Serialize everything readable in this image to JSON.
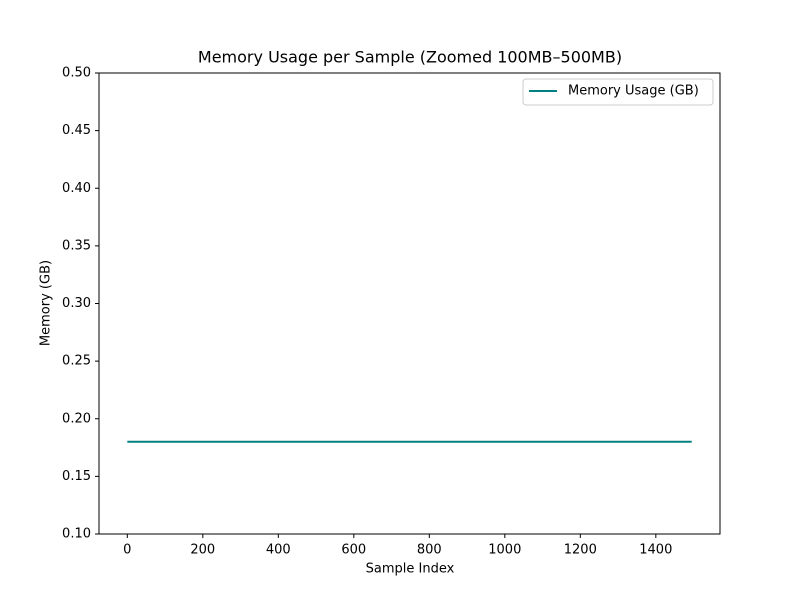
{
  "chart_data": {
    "type": "line",
    "title": "Memory Usage per Sample (Zoomed 100MB–500MB)",
    "x_label": "Sample Index",
    "y_label": "Memory (GB)",
    "x": [
      0,
      100,
      200,
      300,
      400,
      500,
      600,
      700,
      800,
      900,
      1000,
      1100,
      1200,
      1300,
      1400,
      1495
    ],
    "series": [
      {
        "name": "Memory Usage (GB)",
        "color": "#008080",
        "values": [
          0.18,
          0.18,
          0.18,
          0.18,
          0.18,
          0.18,
          0.18,
          0.18,
          0.18,
          0.18,
          0.18,
          0.18,
          0.18,
          0.18,
          0.18,
          0.18
        ]
      }
    ],
    "xlim": [
      -75,
      1570
    ],
    "ylim": [
      0.1,
      0.5
    ],
    "xticks": [
      0,
      200,
      400,
      600,
      800,
      1000,
      1200,
      1400
    ],
    "yticks": [
      {
        "value": 0.1,
        "label": "0.10"
      },
      {
        "value": 0.15,
        "label": "0.15"
      },
      {
        "value": 0.2,
        "label": "0.20"
      },
      {
        "value": 0.25,
        "label": "0.25"
      },
      {
        "value": 0.3,
        "label": "0.30"
      },
      {
        "value": 0.35,
        "label": "0.35"
      },
      {
        "value": 0.4,
        "label": "0.40"
      },
      {
        "value": 0.45,
        "label": "0.45"
      },
      {
        "value": 0.5,
        "label": "0.50"
      }
    ],
    "grid": false,
    "legend": "upper right"
  }
}
